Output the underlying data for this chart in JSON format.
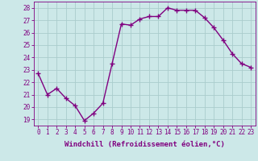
{
  "x": [
    0,
    1,
    2,
    3,
    4,
    5,
    6,
    7,
    8,
    9,
    10,
    11,
    12,
    13,
    14,
    15,
    16,
    17,
    18,
    19,
    20,
    21,
    22,
    23
  ],
  "y": [
    22.7,
    21.0,
    21.5,
    20.7,
    20.1,
    18.9,
    19.5,
    20.3,
    23.5,
    26.7,
    26.6,
    27.1,
    27.3,
    27.3,
    28.0,
    27.8,
    27.8,
    27.8,
    27.2,
    26.4,
    25.4,
    24.3,
    23.5,
    23.2
  ],
  "line_color": "#800080",
  "marker": "+",
  "marker_size": 4,
  "marker_lw": 1.0,
  "xlabel": "Windchill (Refroidissement éolien,°C)",
  "xlabel_fontsize": 6.5,
  "ylabel_ticks": [
    19,
    20,
    21,
    22,
    23,
    24,
    25,
    26,
    27,
    28
  ],
  "ylim": [
    18.5,
    28.5
  ],
  "xlim": [
    -0.5,
    23.5
  ],
  "xtick_labels": [
    "0",
    "1",
    "2",
    "3",
    "4",
    "5",
    "6",
    "7",
    "8",
    "9",
    "10",
    "11",
    "12",
    "13",
    "14",
    "15",
    "16",
    "17",
    "18",
    "19",
    "20",
    "21",
    "22",
    "23"
  ],
  "bg_color": "#cce8e8",
  "grid_color": "#aacccc",
  "tick_fontsize": 5.5,
  "line_width": 1.0
}
